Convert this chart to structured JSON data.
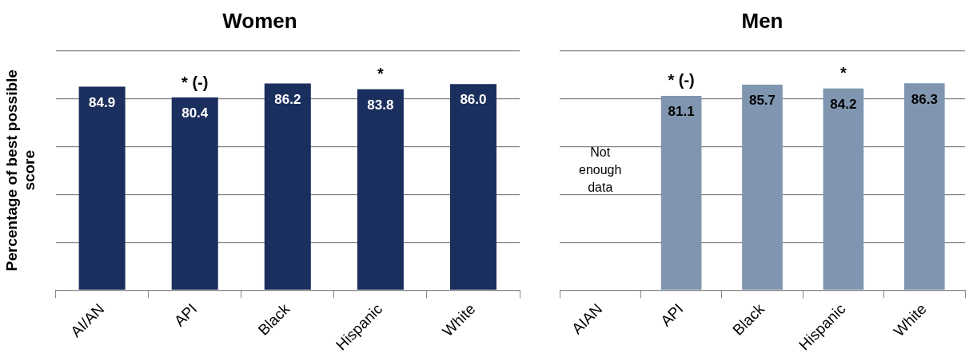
{
  "chart_data": [
    {
      "type": "bar",
      "title": "Women",
      "ylabel": "Percentage of best possible score",
      "categories": [
        "AI/AN",
        "API",
        "Black",
        "Hispanic",
        "White"
      ],
      "values": [
        84.9,
        80.4,
        86.2,
        83.8,
        86.0
      ],
      "value_labels": [
        "84.9",
        "80.4",
        "86.2",
        "83.8",
        "86.0"
      ],
      "color": "#1b2f5e",
      "ylim": [
        0,
        100
      ],
      "yticks": [
        {
          "value": 0,
          "label": null
        },
        {
          "value": 20,
          "label": null
        },
        {
          "value": 40,
          "label": null
        },
        {
          "value": 60,
          "label": null
        },
        {
          "value": 80,
          "label": null
        },
        {
          "value": 100,
          "label": null
        }
      ],
      "grid": "y",
      "tick_labels": "x",
      "annotations": [
        {
          "text": "* (-)",
          "x": "API",
          "y": 80.4
        },
        {
          "text": "*",
          "x": "Hispanic",
          "y": 83.8
        }
      ]
    },
    {
      "type": "bar",
      "title": "Men",
      "categories": [
        "AIAN",
        "API",
        "Black",
        "Hispanic",
        "White"
      ],
      "values": [
        null,
        81.1,
        85.7,
        84.2,
        86.3
      ],
      "value_labels": [
        null,
        "81.1",
        "85.7",
        "84.2",
        "86.3"
      ],
      "color": "#8096b0",
      "ylim": [
        0,
        100
      ],
      "yticks": [
        {
          "value": 0,
          "label": null
        },
        {
          "value": 20,
          "label": null
        },
        {
          "value": 40,
          "label": null
        },
        {
          "value": 60,
          "label": null
        },
        {
          "value": 80,
          "label": null
        },
        {
          "value": 100,
          "label": null
        }
      ],
      "grid": "y",
      "tick_labels": "x",
      "annotations": [
        {
          "text": "* (-)",
          "x": "API",
          "y": 81.1
        },
        {
          "text": "*",
          "x": "Hispanic",
          "y": 84.2
        },
        "Not\nenough\ndata"
      ]
    }
  ]
}
